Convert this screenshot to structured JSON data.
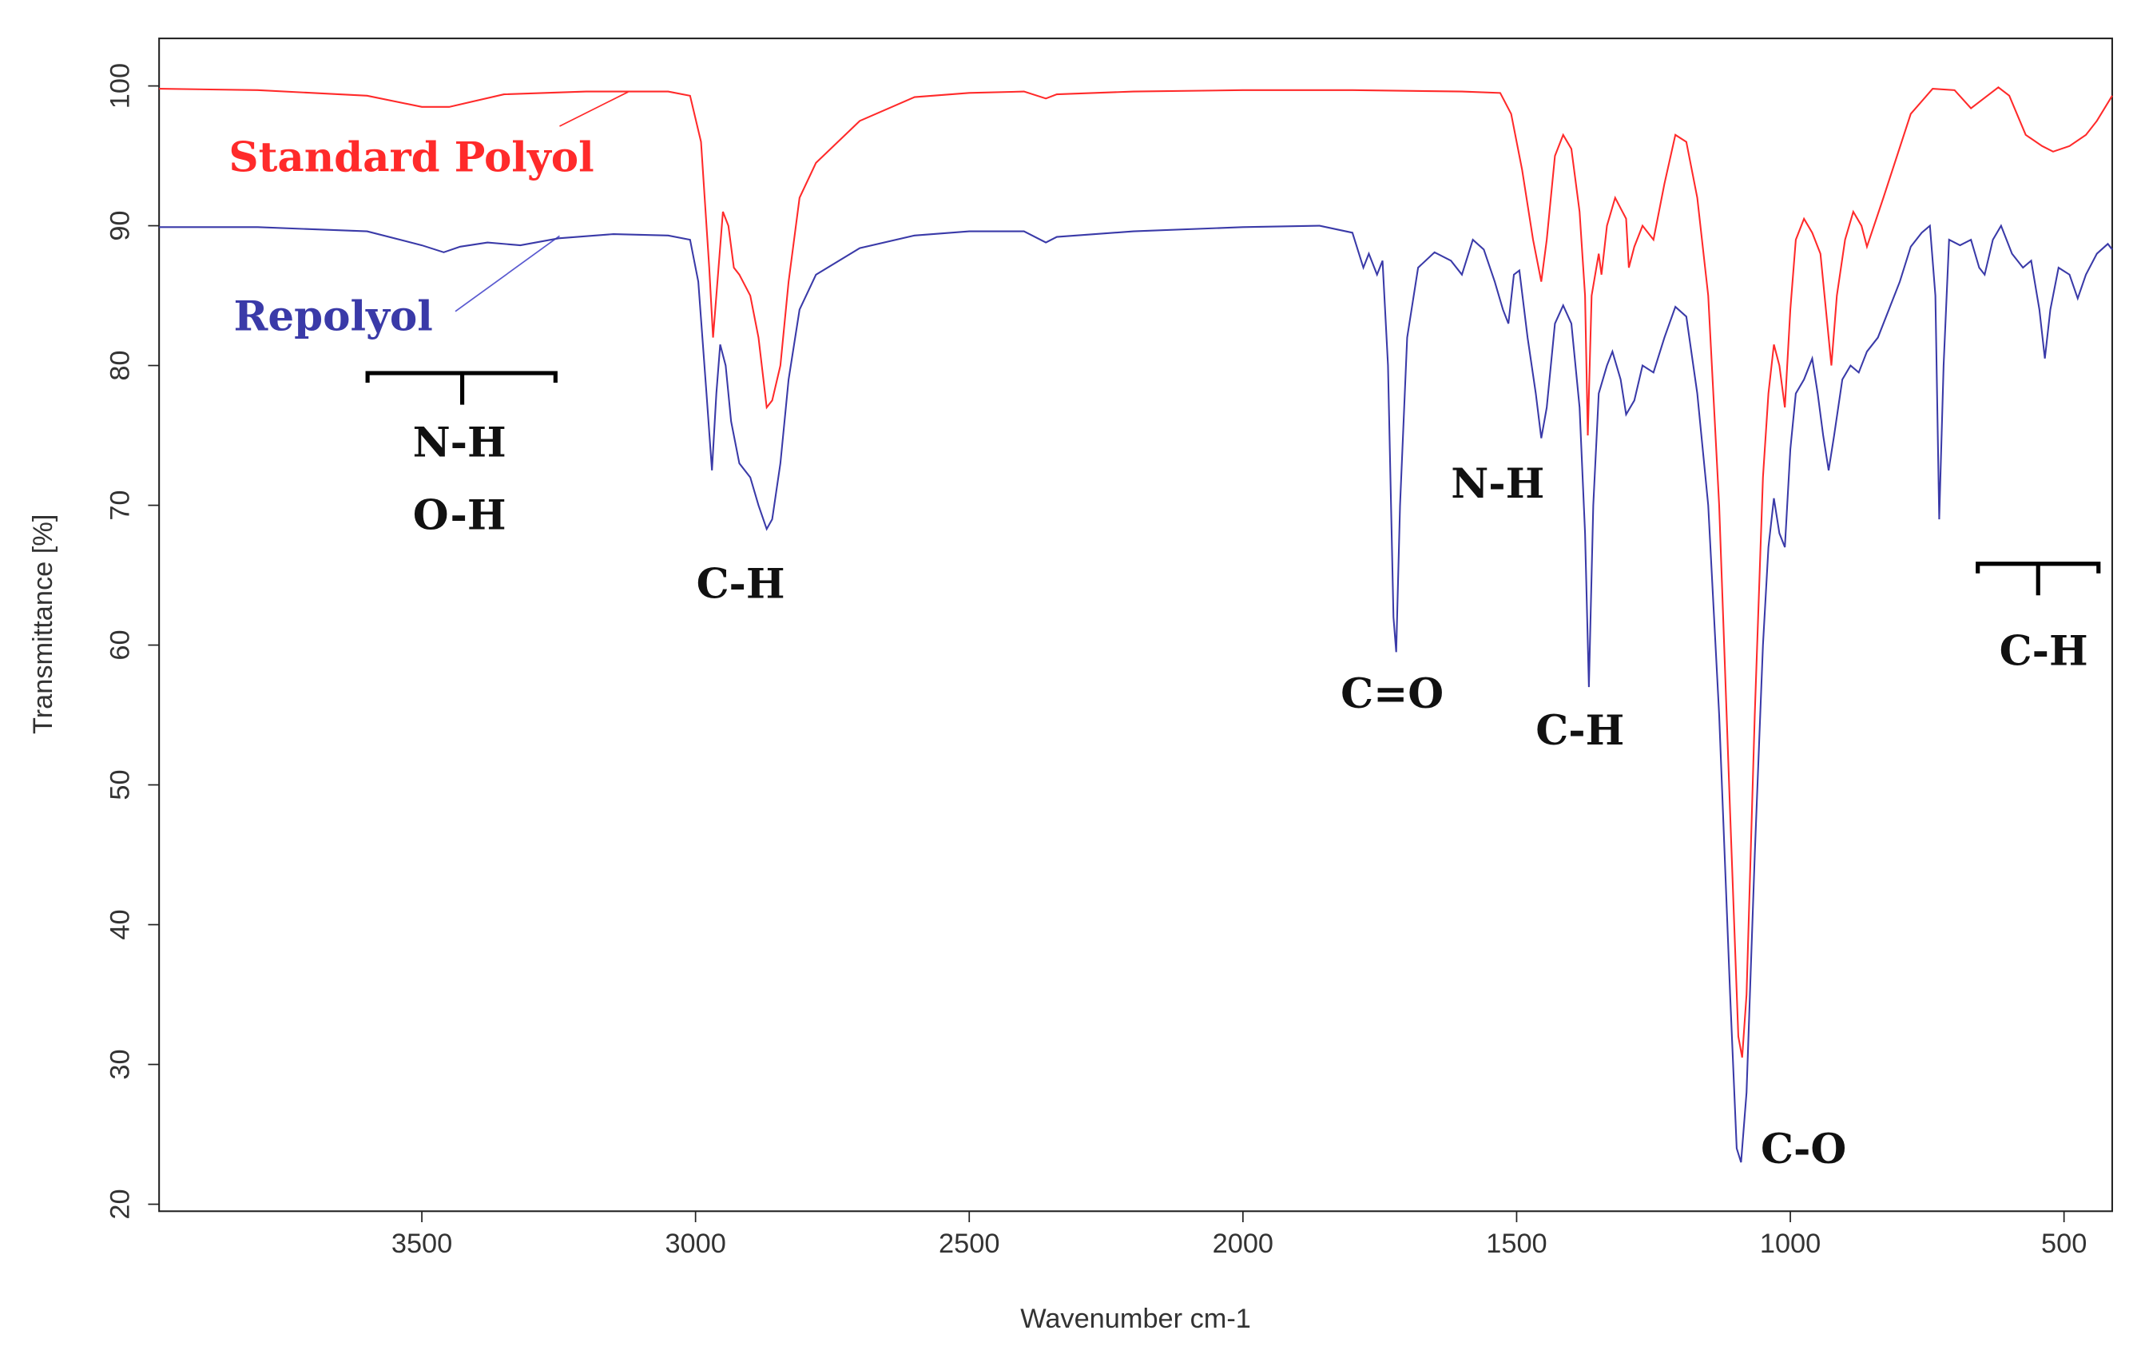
{
  "chart_data": {
    "type": "line",
    "xlabel": "Wavenumber cm-1",
    "ylabel": "Transmittance [%]",
    "xlim": [
      3980,
      412
    ],
    "ylim": [
      19.5,
      103.4
    ],
    "xticks": [
      3500,
      3000,
      2500,
      2000,
      1500,
      1000,
      500
    ],
    "yticks": [
      20,
      30,
      40,
      50,
      60,
      70,
      80,
      90,
      100
    ],
    "series": [
      {
        "name": "Standard Polyol",
        "color": "#ff2a2a",
        "x": [
          3980,
          3800,
          3600,
          3500,
          3450,
          3350,
          3200,
          3050,
          3010,
          2990,
          2975,
          2968,
          2960,
          2950,
          2940,
          2930,
          2920,
          2900,
          2885,
          2870,
          2860,
          2845,
          2830,
          2810,
          2780,
          2700,
          2600,
          2500,
          2400,
          2360,
          2340,
          2200,
          2000,
          1800,
          1600,
          1530,
          1510,
          1490,
          1470,
          1455,
          1445,
          1430,
          1415,
          1400,
          1385,
          1375,
          1370,
          1363,
          1350,
          1345,
          1335,
          1320,
          1300,
          1295,
          1285,
          1270,
          1250,
          1230,
          1210,
          1190,
          1170,
          1150,
          1130,
          1110,
          1095,
          1088,
          1080,
          1065,
          1050,
          1040,
          1030,
          1020,
          1010,
          1000,
          990,
          975,
          960,
          945,
          935,
          925,
          915,
          900,
          885,
          870,
          860,
          830,
          780,
          740,
          700,
          670,
          640,
          620,
          600,
          570,
          540,
          520,
          490,
          460,
          440,
          412
        ],
        "values": [
          99.8,
          99.7,
          99.3,
          98.5,
          98.5,
          99.4,
          99.6,
          99.6,
          99.3,
          96,
          87,
          82,
          86,
          91,
          90,
          87,
          86.5,
          85,
          82,
          77,
          77.5,
          80,
          86,
          92,
          94.5,
          97.5,
          99.2,
          99.5,
          99.6,
          99.1,
          99.4,
          99.6,
          99.7,
          99.7,
          99.6,
          99.5,
          98,
          94,
          89,
          86,
          89,
          95,
          96.5,
          95.5,
          91,
          85,
          75,
          85,
          88,
          86.5,
          90,
          92,
          90.5,
          87,
          88.5,
          90,
          89,
          93,
          96.5,
          96,
          92,
          85,
          70,
          48,
          32,
          30.5,
          35,
          55,
          72,
          78,
          81.5,
          80,
          77,
          84,
          89,
          90.5,
          89.5,
          88,
          84,
          80,
          85,
          89,
          91,
          90,
          88.5,
          92,
          98,
          99.8,
          99.7,
          98.4,
          99.3,
          99.9,
          99.3,
          96.5,
          95.7,
          95.3,
          95.7,
          96.5,
          97.5,
          99.3
        ]
      },
      {
        "name": "Repolyol",
        "color": "#3a3aa8",
        "x": [
          3980,
          3800,
          3600,
          3500,
          3460,
          3430,
          3380,
          3320,
          3250,
          3150,
          3050,
          3010,
          2995,
          2980,
          2970,
          2962,
          2955,
          2945,
          2935,
          2920,
          2900,
          2885,
          2870,
          2860,
          2845,
          2830,
          2810,
          2780,
          2700,
          2600,
          2500,
          2400,
          2360,
          2340,
          2200,
          2000,
          1860,
          1800,
          1780,
          1770,
          1755,
          1745,
          1735,
          1725,
          1720,
          1713,
          1700,
          1680,
          1650,
          1620,
          1600,
          1580,
          1560,
          1540,
          1525,
          1515,
          1505,
          1495,
          1480,
          1465,
          1455,
          1445,
          1430,
          1415,
          1400,
          1385,
          1375,
          1368,
          1360,
          1350,
          1335,
          1325,
          1310,
          1300,
          1285,
          1270,
          1250,
          1230,
          1210,
          1190,
          1170,
          1150,
          1130,
          1110,
          1098,
          1090,
          1080,
          1065,
          1050,
          1040,
          1030,
          1020,
          1010,
          1000,
          990,
          975,
          960,
          950,
          940,
          930,
          920,
          905,
          890,
          875,
          860,
          840,
          820,
          800,
          780,
          760,
          745,
          735,
          728,
          720,
          710,
          690,
          670,
          655,
          645,
          630,
          615,
          595,
          575,
          560,
          545,
          535,
          525,
          510,
          490,
          475,
          460,
          440,
          420,
          412
        ],
        "values": [
          89.9,
          89.9,
          89.6,
          88.6,
          88.1,
          88.5,
          88.8,
          88.6,
          89.1,
          89.4,
          89.3,
          89,
          86,
          78,
          72.5,
          78,
          81.5,
          80,
          76,
          73,
          72,
          70,
          68.3,
          69,
          73,
          79,
          84,
          86.5,
          88.4,
          89.3,
          89.6,
          89.6,
          88.8,
          89.2,
          89.6,
          89.9,
          90,
          89.5,
          87,
          88,
          86.5,
          87.5,
          80,
          62,
          59.5,
          70,
          82,
          87,
          88.1,
          87.5,
          86.5,
          89,
          88.3,
          86,
          84,
          83,
          86.5,
          86.8,
          82,
          78,
          74.8,
          77,
          83,
          84.3,
          83,
          77,
          68,
          57,
          70,
          78,
          80,
          81,
          79,
          76.5,
          77.5,
          80,
          79.5,
          82,
          84.2,
          83.5,
          78,
          70,
          55,
          35,
          24,
          23,
          28,
          45,
          60,
          67,
          70.5,
          68,
          67,
          74,
          78,
          79,
          80.5,
          78,
          75,
          72.5,
          75,
          79,
          80,
          79.5,
          81,
          82,
          84,
          86,
          88.5,
          89.5,
          90,
          85,
          69,
          80,
          89,
          88.6,
          89,
          87,
          86.5,
          89,
          90,
          88,
          87,
          87.5,
          84,
          80.5,
          84,
          87,
          86.5,
          84.8,
          86.5,
          88,
          88.7,
          88.3
        ]
      }
    ],
    "annotations": [
      "N-H",
      "O-H",
      "C-H",
      "C=O",
      "N-H",
      "C-H",
      "C-O",
      "C-H"
    ]
  }
}
